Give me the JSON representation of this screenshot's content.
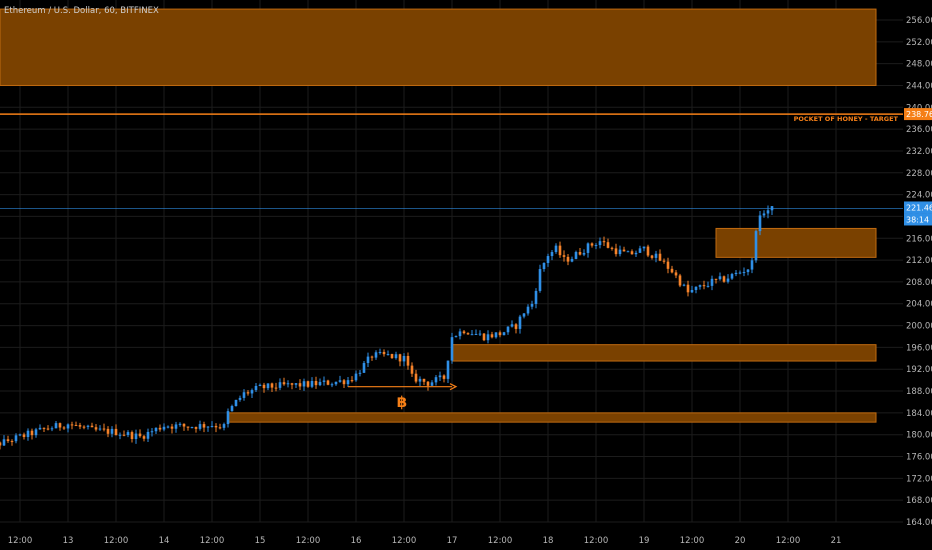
{
  "header": {
    "title": "Ethereum / U.S. Dollar, 60, BITFINEX"
  },
  "colors": {
    "background": "#000000",
    "grid": "#1c1c1c",
    "up_candle": "#2f8fe6",
    "down_candle": "#f5822a",
    "zone_fill": "#7a4100",
    "zone_border": "#c06a10",
    "target_line": "#f57f17",
    "last_price": "#2f8fe6",
    "bitcoin_icon": "#f57f17"
  },
  "price_tags": {
    "target": "238.76",
    "last": "221.46",
    "countdown": "38:14"
  },
  "chart_data": {
    "type": "candlestick",
    "title": "Ethereum / U.S. Dollar, 60, BITFINEX",
    "ylim": [
      162,
      258
    ],
    "y_ticks": [
      "164.00",
      "168.00",
      "172.00",
      "176.00",
      "180.00",
      "184.00",
      "188.00",
      "192.00",
      "196.00",
      "200.00",
      "204.00",
      "208.00",
      "212.00",
      "216.00",
      "220.00",
      "224.00",
      "228.00",
      "232.00",
      "236.00",
      "240.00",
      "244.00",
      "248.00",
      "252.00",
      "256.00"
    ],
    "x_ticks": [
      {
        "label": "12:00",
        "t": 0
      },
      {
        "label": "13",
        "t": 12
      },
      {
        "label": "12:00",
        "t": 24
      },
      {
        "label": "14",
        "t": 36
      },
      {
        "label": "12:00",
        "t": 48
      },
      {
        "label": "15",
        "t": 60
      },
      {
        "label": "12:00",
        "t": 72
      },
      {
        "label": "16",
        "t": 84
      },
      {
        "label": "12:00",
        "t": 96
      },
      {
        "label": "17",
        "t": 108
      },
      {
        "label": "12:00",
        "t": 120
      },
      {
        "label": "18",
        "t": 132
      },
      {
        "label": "12:00",
        "t": 144
      },
      {
        "label": "19",
        "t": 156
      },
      {
        "label": "12:00",
        "t": 168
      },
      {
        "label": "20",
        "t": 180
      },
      {
        "label": "12:00",
        "t": 192
      },
      {
        "label": "21",
        "t": 204
      }
    ],
    "zones": [
      {
        "name": "supply-zone-top",
        "y1": 244,
        "y2": 258,
        "t0": -10,
        "t1": 214
      },
      {
        "name": "demand-zone-216",
        "y1": 212.5,
        "y2": 217.8,
        "t0": 174,
        "t1": 214
      },
      {
        "name": "demand-zone-194",
        "y1": 193.5,
        "y2": 196.5,
        "t0": 108,
        "t1": 214
      },
      {
        "name": "demand-zone-183",
        "y1": 182.3,
        "y2": 184.0,
        "t0": 52,
        "t1": 214
      }
    ],
    "target": {
      "price": 238.76,
      "label": "POCKET OF HONEY - TARGET"
    },
    "last_price": 221.46,
    "arrow": {
      "t0": 82,
      "t1": 109,
      "price": 188.8
    },
    "bitcoin_marker": {
      "t": 95.5,
      "price": 186.0
    },
    "anchors": [
      [
        -10,
        177.2
      ],
      [
        0,
        179.6
      ],
      [
        6,
        181.0
      ],
      [
        12,
        182.0
      ],
      [
        18,
        180.8
      ],
      [
        24,
        180.5
      ],
      [
        30,
        179.6
      ],
      [
        36,
        181.7
      ],
      [
        42,
        181.5
      ],
      [
        48,
        181.8
      ],
      [
        51,
        181.5
      ],
      [
        52,
        184.0
      ],
      [
        54,
        186.0
      ],
      [
        56,
        187.5
      ],
      [
        60,
        188.6
      ],
      [
        66,
        189.0
      ],
      [
        72,
        189.2
      ],
      [
        78,
        189.6
      ],
      [
        82,
        190.0
      ],
      [
        84,
        191.0
      ],
      [
        88,
        194.5
      ],
      [
        92,
        194.5
      ],
      [
        96,
        194.0
      ],
      [
        98,
        190.5
      ],
      [
        102,
        189.5
      ],
      [
        106,
        190.4
      ],
      [
        108,
        198.0
      ],
      [
        111,
        199.2
      ],
      [
        116,
        198.0
      ],
      [
        120,
        198.5
      ],
      [
        124,
        200.0
      ],
      [
        126,
        202.5
      ],
      [
        128,
        204.0
      ],
      [
        130,
        210.0
      ],
      [
        132,
        213.0
      ],
      [
        134,
        214.0
      ],
      [
        136,
        212.0
      ],
      [
        138,
        212.5
      ],
      [
        142,
        214.5
      ],
      [
        145,
        215.5
      ],
      [
        148,
        214.0
      ],
      [
        152,
        213.0
      ],
      [
        156,
        214.0
      ],
      [
        160,
        212.0
      ],
      [
        163,
        210.0
      ],
      [
        165,
        208.0
      ],
      [
        167,
        206.0
      ],
      [
        170,
        207.0
      ],
      [
        173,
        208.0
      ],
      [
        176,
        208.5
      ],
      [
        180,
        209.8
      ],
      [
        182,
        210.5
      ],
      [
        183,
        211.5
      ],
      [
        184,
        218.0
      ],
      [
        186,
        221.0
      ],
      [
        188,
        221.3
      ]
    ]
  }
}
